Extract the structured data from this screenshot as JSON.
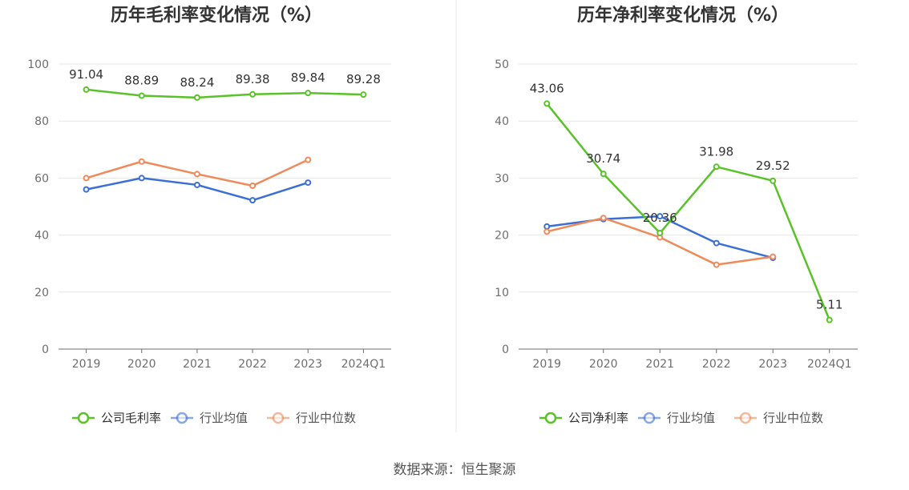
{
  "source": "数据来源：恒生聚源",
  "chart_data": [
    {
      "type": "line",
      "title": "历年毛利率变化情况（%）",
      "categories": [
        "2019",
        "2020",
        "2021",
        "2022",
        "2023",
        "2024Q1"
      ],
      "ylim": [
        0,
        100
      ],
      "yticks": [
        0,
        20,
        40,
        60,
        80,
        100
      ],
      "grid": true,
      "legend_position": "bottom-center",
      "series": [
        {
          "name": "公司毛利率",
          "color": "#5ac229",
          "values": [
            91.04,
            88.89,
            88.24,
            89.38,
            89.84,
            89.28
          ],
          "labels": true
        },
        {
          "name": "行业均值",
          "color": "#3b6fd6",
          "values": [
            56.0,
            60.0,
            57.6,
            52.2,
            58.4,
            null
          ],
          "labels": false
        },
        {
          "name": "行业中位数",
          "color": "#ef8a5a",
          "values": [
            60.0,
            65.8,
            61.4,
            57.3,
            66.4,
            null
          ],
          "labels": false
        }
      ]
    },
    {
      "type": "line",
      "title": "历年净利率变化情况（%）",
      "categories": [
        "2019",
        "2020",
        "2021",
        "2022",
        "2023",
        "2024Q1"
      ],
      "ylim": [
        0,
        50
      ],
      "yticks": [
        0,
        10,
        20,
        30,
        40,
        50
      ],
      "grid": true,
      "legend_position": "bottom-center",
      "series": [
        {
          "name": "公司净利率",
          "color": "#5ac229",
          "values": [
            43.06,
            30.74,
            20.36,
            31.98,
            29.52,
            5.11
          ],
          "labels": true
        },
        {
          "name": "行业均值",
          "color": "#3b6fd6",
          "values": [
            21.5,
            22.8,
            23.3,
            18.6,
            16.0,
            null
          ],
          "labels": false
        },
        {
          "name": "行业中位数",
          "color": "#ef8a5a",
          "values": [
            20.6,
            23.0,
            19.6,
            14.8,
            16.2,
            null
          ],
          "labels": false
        }
      ]
    }
  ]
}
